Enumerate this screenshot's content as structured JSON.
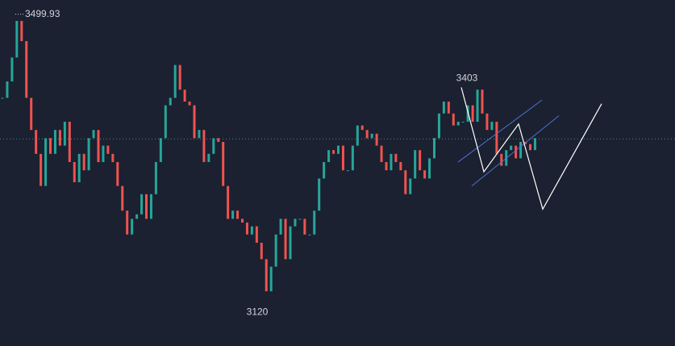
{
  "chart_data": {
    "type": "candlestick",
    "values": [
      3389,
      3411,
      3443,
      3492,
      3465,
      3389,
      3346,
      3314,
      3271,
      3335,
      3314,
      3346,
      3325,
      3357,
      3303,
      3276,
      3314,
      3292,
      3335,
      3346,
      3303,
      3325,
      3314,
      3303,
      3271,
      3238,
      3206,
      3227,
      3233,
      3260,
      3227,
      3260,
      3303,
      3335,
      3379,
      3389,
      3433,
      3400,
      3384,
      3379,
      3335,
      3346,
      3303,
      3314,
      3335,
      3330,
      3271,
      3227,
      3238,
      3227,
      3222,
      3206,
      3217,
      3195,
      3173,
      3130,
      3163,
      3206,
      3227,
      3173,
      3217,
      3227,
      3227,
      3206,
      3206,
      3238,
      3281,
      3303,
      3319,
      3314,
      3325,
      3292,
      3292,
      3325,
      3352,
      3346,
      3335,
      3341,
      3325,
      3303,
      3292,
      3314,
      3303,
      3292,
      3260,
      3281,
      3319,
      3292,
      3281,
      3308,
      3335,
      3368,
      3384,
      3368,
      3352,
      3357,
      3357,
      3379,
      3357,
      3400,
      3368,
      3346,
      3357,
      3314,
      3298,
      3319,
      3325,
      3308,
      3330,
      3327,
      3319,
      3335
    ],
    "up_color": "#26a69a",
    "down_color": "#ef5350",
    "ylim": [
      3060,
      3520
    ],
    "last_price": 3334,
    "high_label": 3499.93,
    "peak_label": 3403,
    "low_label": 3120,
    "projection": [
      3403,
      3290,
      3354,
      3240,
      3381
    ],
    "channel_upper": [
      3303,
      3386
    ],
    "channel_lower": [
      3271,
      3365
    ]
  }
}
